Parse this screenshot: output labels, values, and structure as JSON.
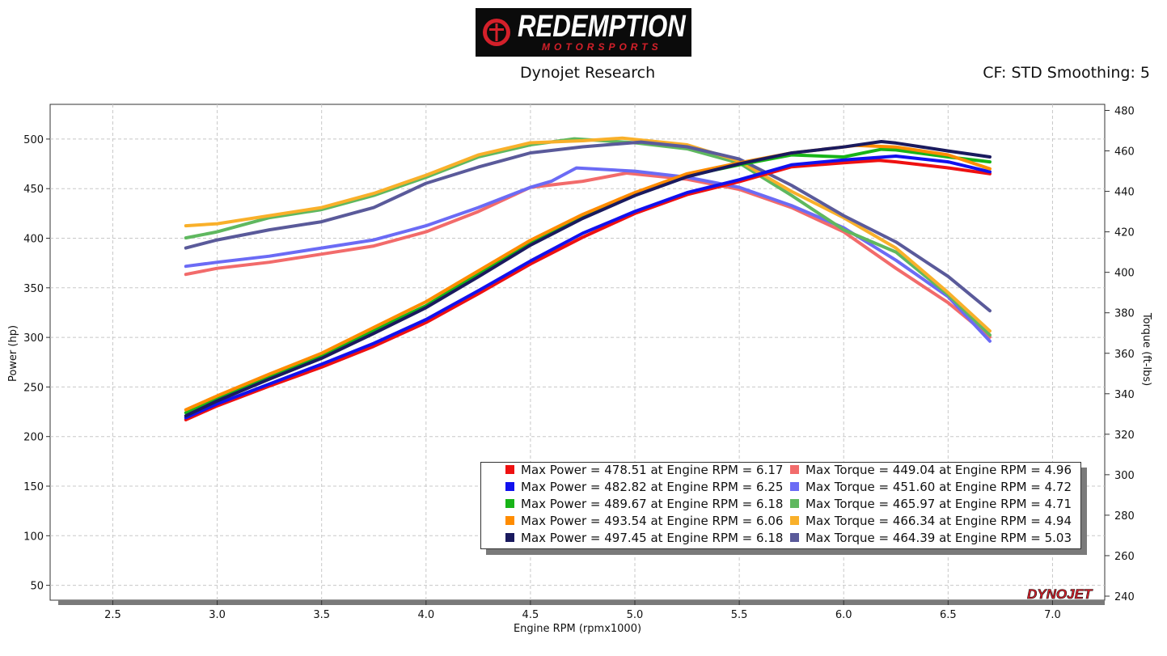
{
  "header": {
    "logo_title": "REDEMPTION",
    "logo_subtitle": "MOTORSPORTS",
    "title": "Dynojet Research",
    "cf_text": "CF: STD Smoothing: 5",
    "brand_mark": "DYNOJET"
  },
  "colors": {
    "power": [
      "#ee1111",
      "#1111ee",
      "#18b418",
      "#ff8c00",
      "#1a1a5e"
    ],
    "torque": [
      "#f26b6b",
      "#6b6bf5",
      "#5fb85f",
      "#f9b02a",
      "#5a5a9a"
    ],
    "logo_red": "#d4202a"
  },
  "chart_data": {
    "type": "line",
    "xlabel": "Engine RPM (rpmx1000)",
    "ylabel": "Power (hp)",
    "y2label": "Torque (ft-lbs)",
    "xlim": [
      2.2,
      7.25
    ],
    "ylim": [
      35,
      535
    ],
    "y2lim": [
      238,
      483
    ],
    "x_ticks": [
      "2.5",
      "3.0",
      "3.5",
      "4.0",
      "4.5",
      "5.0",
      "5.5",
      "6.0",
      "6.5",
      "7.0"
    ],
    "y_ticks": [
      "50",
      "100",
      "150",
      "200",
      "250",
      "300",
      "350",
      "400",
      "450",
      "500"
    ],
    "y2_ticks": [
      "240",
      "260",
      "280",
      "300",
      "320",
      "340",
      "360",
      "380",
      "400",
      "420",
      "440",
      "460",
      "480"
    ],
    "grid": true,
    "legend_position": "bottom-right",
    "power_series": [
      {
        "x": [
          2.85,
          3.0,
          3.25,
          3.5,
          3.75,
          4.0,
          4.25,
          4.5,
          4.75,
          5.0,
          5.25,
          5.5,
          5.75,
          6.0,
          6.17,
          6.25,
          6.5,
          6.7
        ],
        "values": [
          217,
          231,
          251,
          270,
          291,
          315,
          344,
          374,
          401,
          425,
          444,
          457,
          472,
          476,
          478.51,
          477,
          471,
          465
        ]
      },
      {
        "x": [
          2.85,
          3.0,
          3.25,
          3.5,
          3.75,
          4.0,
          4.25,
          4.5,
          4.75,
          5.0,
          5.25,
          5.5,
          5.75,
          6.0,
          6.25,
          6.5,
          6.7
        ],
        "values": [
          219,
          233,
          253,
          273,
          294,
          318,
          347,
          377,
          405,
          427,
          446,
          459,
          474,
          479,
          482.82,
          477,
          467
        ]
      },
      {
        "x": [
          2.85,
          3.0,
          3.25,
          3.5,
          3.75,
          4.0,
          4.25,
          4.5,
          4.75,
          5.0,
          5.25,
          5.5,
          5.75,
          6.0,
          6.18,
          6.25,
          6.5,
          6.7
        ],
        "values": [
          224,
          239,
          261,
          282,
          307,
          332,
          364,
          395,
          423,
          444,
          463,
          474,
          484,
          482,
          489.67,
          489,
          482,
          477
        ]
      },
      {
        "x": [
          2.85,
          3.0,
          3.25,
          3.5,
          3.75,
          4.0,
          4.25,
          4.5,
          4.75,
          5.0,
          5.25,
          5.5,
          5.75,
          6.0,
          6.06,
          6.25,
          6.5,
          6.7
        ],
        "values": [
          227,
          241,
          263,
          284,
          310,
          336,
          367,
          398,
          424,
          446,
          465,
          476,
          486,
          492,
          493.54,
          492,
          484,
          470
        ]
      },
      {
        "x": [
          2.85,
          3.0,
          3.25,
          3.5,
          3.75,
          4.0,
          4.25,
          4.5,
          4.75,
          5.0,
          5.25,
          5.5,
          5.75,
          6.0,
          6.18,
          6.25,
          6.5,
          6.7
        ],
        "values": [
          221,
          236,
          258,
          279,
          304,
          330,
          361,
          393,
          420,
          443,
          462,
          475,
          486,
          492,
          497.45,
          496,
          488,
          482
        ]
      }
    ],
    "torque_series": [
      {
        "x": [
          2.85,
          3.0,
          3.25,
          3.5,
          3.75,
          4.0,
          4.25,
          4.5,
          4.75,
          4.96,
          5.25,
          5.5,
          5.75,
          6.0,
          6.25,
          6.5,
          6.7
        ],
        "values": [
          399,
          402,
          405,
          409,
          413,
          420,
          430,
          442,
          445,
          449.04,
          446,
          441,
          432,
          420,
          402,
          385,
          368
        ]
      },
      {
        "x": [
          2.85,
          3.0,
          3.25,
          3.5,
          3.75,
          4.0,
          4.25,
          4.5,
          4.6,
          4.72,
          5.0,
          5.25,
          5.5,
          5.75,
          6.0,
          6.25,
          6.5,
          6.7
        ],
        "values": [
          403,
          405,
          408,
          412,
          416,
          423,
          432,
          442,
          445,
          451.6,
          450,
          447,
          442,
          433,
          422,
          406,
          388,
          366
        ]
      },
      {
        "x": [
          2.85,
          3.0,
          3.25,
          3.5,
          3.75,
          4.0,
          4.25,
          4.5,
          4.71,
          5.0,
          5.25,
          5.5,
          5.75,
          6.0,
          6.25,
          6.5,
          6.7
        ],
        "values": [
          417,
          420,
          427,
          431,
          438,
          447,
          457,
          463,
          465.97,
          464,
          461,
          454,
          438,
          421,
          410,
          389,
          369
        ]
      },
      {
        "x": [
          2.85,
          3.0,
          3.25,
          3.5,
          3.75,
          4.0,
          4.25,
          4.5,
          4.75,
          4.94,
          5.25,
          5.5,
          5.75,
          6.0,
          6.25,
          6.5,
          6.7
        ],
        "values": [
          423,
          424,
          428,
          432,
          439,
          448,
          458,
          464,
          465,
          466.34,
          463,
          455,
          440,
          427,
          412,
          390,
          371
        ]
      },
      {
        "x": [
          2.85,
          3.0,
          3.25,
          3.5,
          3.75,
          4.0,
          4.25,
          4.5,
          4.75,
          5.03,
          5.25,
          5.5,
          5.75,
          6.0,
          6.25,
          6.5,
          6.7
        ],
        "values": [
          412,
          416,
          421,
          425,
          432,
          444,
          452,
          459,
          462,
          464.39,
          462,
          456,
          443,
          428,
          415,
          398,
          381
        ]
      }
    ],
    "legend": {
      "power": [
        "Max Power = 478.51 at Engine RPM = 6.17",
        "Max Power = 482.82 at Engine RPM = 6.25",
        "Max Power = 489.67 at Engine RPM = 6.18",
        "Max Power = 493.54 at Engine RPM = 6.06",
        "Max Power = 497.45 at Engine RPM = 6.18"
      ],
      "torque": [
        "Max Torque = 449.04 at Engine RPM = 4.96",
        "Max Torque = 451.60 at Engine RPM = 4.72",
        "Max Torque = 465.97 at Engine RPM = 4.71",
        "Max Torque = 466.34 at Engine RPM = 4.94",
        "Max Torque = 464.39 at Engine RPM = 5.03"
      ]
    }
  }
}
